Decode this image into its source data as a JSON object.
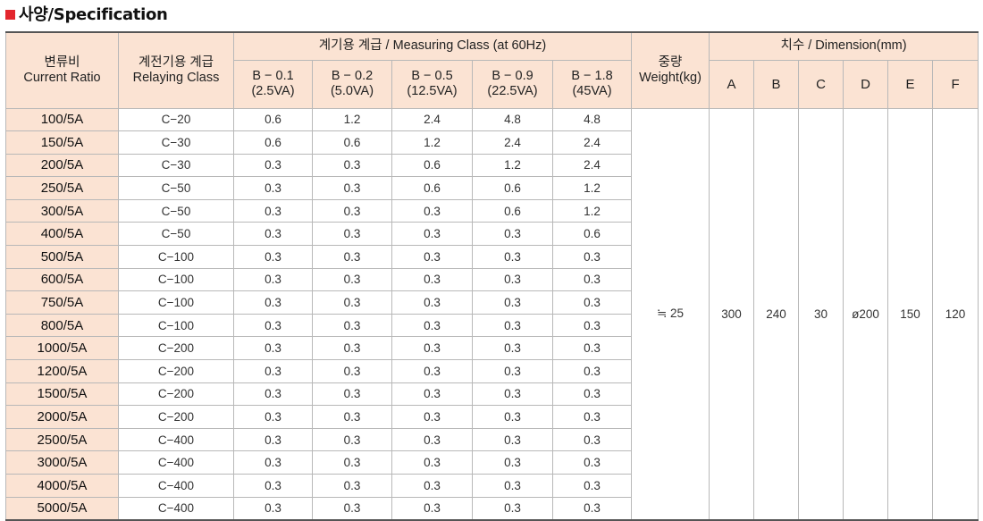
{
  "title": "사양/Specification",
  "colors": {
    "marker": "#e3262d",
    "header_bg": "#fbe3d3"
  },
  "headers": {
    "ratio_ko": "변류비",
    "ratio_en": "Current Ratio",
    "relay_ko": "계전기용 계급",
    "relay_en": "Relaying  Class",
    "measuring": "계기용 계급 / Measuring Class (at 60Hz)",
    "weight_ko": "중량",
    "weight_en": "Weight(kg)",
    "dimension": "치수 / Dimension(mm)",
    "burdens": [
      {
        "b": "B − 0.1",
        "va": "(2.5VA)"
      },
      {
        "b": "B − 0.2",
        "va": "(5.0VA)"
      },
      {
        "b": "B − 0.5",
        "va": "(12.5VA)"
      },
      {
        "b": "B − 0.9",
        "va": "(22.5VA)"
      },
      {
        "b": "B − 1.8",
        "va": "(45VA)"
      }
    ],
    "dims": [
      "A",
      "B",
      "C",
      "D",
      "E",
      "F"
    ]
  },
  "weight": "≒ 25",
  "dimension_values": [
    "300",
    "240",
    "30",
    "ø200",
    "150",
    "120"
  ],
  "rows": [
    {
      "ratio": "100/5A",
      "relay": "C−20",
      "m": [
        "0.6",
        "1.2",
        "2.4",
        "4.8",
        "4.8"
      ]
    },
    {
      "ratio": "150/5A",
      "relay": "C−30",
      "m": [
        "0.6",
        "0.6",
        "1.2",
        "2.4",
        "2.4"
      ]
    },
    {
      "ratio": "200/5A",
      "relay": "C−30",
      "m": [
        "0.3",
        "0.3",
        "0.6",
        "1.2",
        "2.4"
      ]
    },
    {
      "ratio": "250/5A",
      "relay": "C−50",
      "m": [
        "0.3",
        "0.3",
        "0.6",
        "0.6",
        "1.2"
      ]
    },
    {
      "ratio": "300/5A",
      "relay": "C−50",
      "m": [
        "0.3",
        "0.3",
        "0.3",
        "0.6",
        "1.2"
      ]
    },
    {
      "ratio": "400/5A",
      "relay": "C−50",
      "m": [
        "0.3",
        "0.3",
        "0.3",
        "0.3",
        "0.6"
      ]
    },
    {
      "ratio": "500/5A",
      "relay": "C−100",
      "m": [
        "0.3",
        "0.3",
        "0.3",
        "0.3",
        "0.3"
      ]
    },
    {
      "ratio": "600/5A",
      "relay": "C−100",
      "m": [
        "0.3",
        "0.3",
        "0.3",
        "0.3",
        "0.3"
      ]
    },
    {
      "ratio": "750/5A",
      "relay": "C−100",
      "m": [
        "0.3",
        "0.3",
        "0.3",
        "0.3",
        "0.3"
      ]
    },
    {
      "ratio": "800/5A",
      "relay": "C−100",
      "m": [
        "0.3",
        "0.3",
        "0.3",
        "0.3",
        "0.3"
      ]
    },
    {
      "ratio": "1000/5A",
      "relay": "C−200",
      "m": [
        "0.3",
        "0.3",
        "0.3",
        "0.3",
        "0.3"
      ]
    },
    {
      "ratio": "1200/5A",
      "relay": "C−200",
      "m": [
        "0.3",
        "0.3",
        "0.3",
        "0.3",
        "0.3"
      ]
    },
    {
      "ratio": "1500/5A",
      "relay": "C−200",
      "m": [
        "0.3",
        "0.3",
        "0.3",
        "0.3",
        "0.3"
      ]
    },
    {
      "ratio": "2000/5A",
      "relay": "C−200",
      "m": [
        "0.3",
        "0.3",
        "0.3",
        "0.3",
        "0.3"
      ]
    },
    {
      "ratio": "2500/5A",
      "relay": "C−400",
      "m": [
        "0.3",
        "0.3",
        "0.3",
        "0.3",
        "0.3"
      ]
    },
    {
      "ratio": "3000/5A",
      "relay": "C−400",
      "m": [
        "0.3",
        "0.3",
        "0.3",
        "0.3",
        "0.3"
      ]
    },
    {
      "ratio": "4000/5A",
      "relay": "C−400",
      "m": [
        "0.3",
        "0.3",
        "0.3",
        "0.3",
        "0.3"
      ]
    },
    {
      "ratio": "5000/5A",
      "relay": "C−400",
      "m": [
        "0.3",
        "0.3",
        "0.3",
        "0.3",
        "0.3"
      ]
    }
  ]
}
